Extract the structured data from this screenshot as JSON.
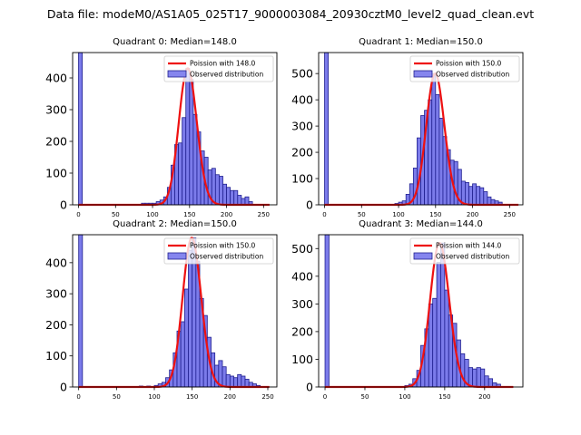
{
  "figure_title": "Data file: modeM0/AS1A05_025T17_9000003084_20930cztM0_level2_quad_clean.evt",
  "colors": {
    "bar_fill": "#7b7bea",
    "bar_edge": "#202090",
    "poisson_line": "#ee1111",
    "legend_bar": "#8585ee"
  },
  "legend_labels": {
    "observed": "Observed distribution"
  },
  "chart_data": [
    {
      "type": "bar",
      "title": "Quadrant 0: Median=148.0",
      "legend_poisson": "Poission with 148.0",
      "legend_observed": "Observed distribution",
      "legend_position": "top-right",
      "xlim": [
        -8,
        268
      ],
      "ylim": [
        0,
        480
      ],
      "xticks": [
        0,
        50,
        100,
        150,
        200,
        250
      ],
      "yticks": [
        0,
        100,
        200,
        300,
        400
      ],
      "bin_width": 5,
      "bars": [
        [
          0,
          480
        ],
        [
          85,
          5
        ],
        [
          90,
          5
        ],
        [
          95,
          5
        ],
        [
          100,
          5
        ],
        [
          105,
          10
        ],
        [
          110,
          15
        ],
        [
          115,
          25
        ],
        [
          120,
          55
        ],
        [
          125,
          125
        ],
        [
          130,
          190
        ],
        [
          135,
          195
        ],
        [
          140,
          275
        ],
        [
          145,
          430
        ],
        [
          150,
          395
        ],
        [
          155,
          285
        ],
        [
          160,
          230
        ],
        [
          165,
          170
        ],
        [
          170,
          150
        ],
        [
          175,
          110
        ],
        [
          180,
          115
        ],
        [
          185,
          95
        ],
        [
          190,
          90
        ],
        [
          195,
          65
        ],
        [
          200,
          55
        ],
        [
          205,
          45
        ],
        [
          210,
          45
        ],
        [
          215,
          30
        ],
        [
          220,
          20
        ],
        [
          225,
          25
        ],
        [
          230,
          10
        ]
      ],
      "poisson_mean": 148.0,
      "poisson_x": [
        0,
        258
      ]
    },
    {
      "type": "bar",
      "title": "Quadrant 1: Median=150.0",
      "legend_poisson": "Poission with 150.0",
      "legend_observed": "Observed distribution",
      "legend_position": "top-right",
      "xlim": [
        -8,
        268
      ],
      "ylim": [
        0,
        580
      ],
      "xticks": [
        0,
        50,
        100,
        150,
        200,
        250
      ],
      "yticks": [
        0,
        100,
        200,
        300,
        400,
        500
      ],
      "bin_width": 5,
      "bars": [
        [
          0,
          580
        ],
        [
          95,
          5
        ],
        [
          100,
          10
        ],
        [
          105,
          15
        ],
        [
          110,
          40
        ],
        [
          115,
          80
        ],
        [
          120,
          140
        ],
        [
          125,
          255
        ],
        [
          130,
          340
        ],
        [
          135,
          360
        ],
        [
          140,
          400
        ],
        [
          145,
          500
        ],
        [
          150,
          420
        ],
        [
          155,
          330
        ],
        [
          160,
          260
        ],
        [
          165,
          210
        ],
        [
          170,
          170
        ],
        [
          175,
          165
        ],
        [
          180,
          135
        ],
        [
          185,
          90
        ],
        [
          190,
          85
        ],
        [
          195,
          70
        ],
        [
          200,
          80
        ],
        [
          205,
          70
        ],
        [
          210,
          65
        ],
        [
          215,
          50
        ],
        [
          220,
          30
        ],
        [
          225,
          20
        ],
        [
          230,
          15
        ],
        [
          235,
          10
        ]
      ],
      "poisson_mean": 150.0,
      "poisson_x": [
        0,
        262
      ]
    },
    {
      "type": "bar",
      "title": "Quadrant 2: Median=150.0",
      "legend_poisson": "Poission with 150.0",
      "legend_observed": "Observed distribution",
      "legend_position": "top-right",
      "xlim": [
        -8,
        262
      ],
      "ylim": [
        0,
        490
      ],
      "xticks": [
        0,
        50,
        100,
        150,
        200,
        250
      ],
      "yticks": [
        0,
        100,
        200,
        300,
        400
      ],
      "bin_width": 5,
      "bars": [
        [
          0,
          490
        ],
        [
          80,
          3
        ],
        [
          90,
          3
        ],
        [
          100,
          5
        ],
        [
          105,
          10
        ],
        [
          110,
          15
        ],
        [
          115,
          30
        ],
        [
          120,
          55
        ],
        [
          125,
          110
        ],
        [
          130,
          180
        ],
        [
          135,
          210
        ],
        [
          140,
          315
        ],
        [
          145,
          440
        ],
        [
          150,
          480
        ],
        [
          155,
          405
        ],
        [
          160,
          285
        ],
        [
          165,
          230
        ],
        [
          170,
          160
        ],
        [
          175,
          110
        ],
        [
          180,
          70
        ],
        [
          185,
          85
        ],
        [
          190,
          65
        ],
        [
          195,
          40
        ],
        [
          200,
          35
        ],
        [
          205,
          30
        ],
        [
          210,
          40
        ],
        [
          215,
          35
        ],
        [
          220,
          25
        ],
        [
          225,
          15
        ],
        [
          230,
          10
        ],
        [
          235,
          5
        ]
      ],
      "poisson_mean": 150.0,
      "poisson_x": [
        0,
        252
      ]
    },
    {
      "type": "bar",
      "title": "Quadrant 3: Median=144.0",
      "legend_poisson": "Poission with 144.0",
      "legend_observed": "Observed distribution",
      "legend_position": "top-right",
      "xlim": [
        -8,
        248
      ],
      "ylim": [
        0,
        550
      ],
      "xticks": [
        0,
        50,
        100,
        150,
        200
      ],
      "yticks": [
        0,
        100,
        200,
        300,
        400,
        500
      ],
      "bin_width": 5,
      "bars": [
        [
          0,
          550
        ],
        [
          100,
          5
        ],
        [
          105,
          10
        ],
        [
          110,
          30
        ],
        [
          115,
          60
        ],
        [
          120,
          150
        ],
        [
          125,
          210
        ],
        [
          130,
          300
        ],
        [
          135,
          320
        ],
        [
          140,
          450
        ],
        [
          145,
          520
        ],
        [
          150,
          350
        ],
        [
          155,
          260
        ],
        [
          160,
          230
        ],
        [
          165,
          170
        ],
        [
          170,
          120
        ],
        [
          175,
          100
        ],
        [
          180,
          70
        ],
        [
          185,
          65
        ],
        [
          190,
          70
        ],
        [
          195,
          65
        ],
        [
          200,
          40
        ],
        [
          205,
          30
        ],
        [
          210,
          15
        ],
        [
          215,
          10
        ]
      ],
      "poisson_mean": 144.0,
      "poisson_x": [
        0,
        236
      ]
    }
  ]
}
